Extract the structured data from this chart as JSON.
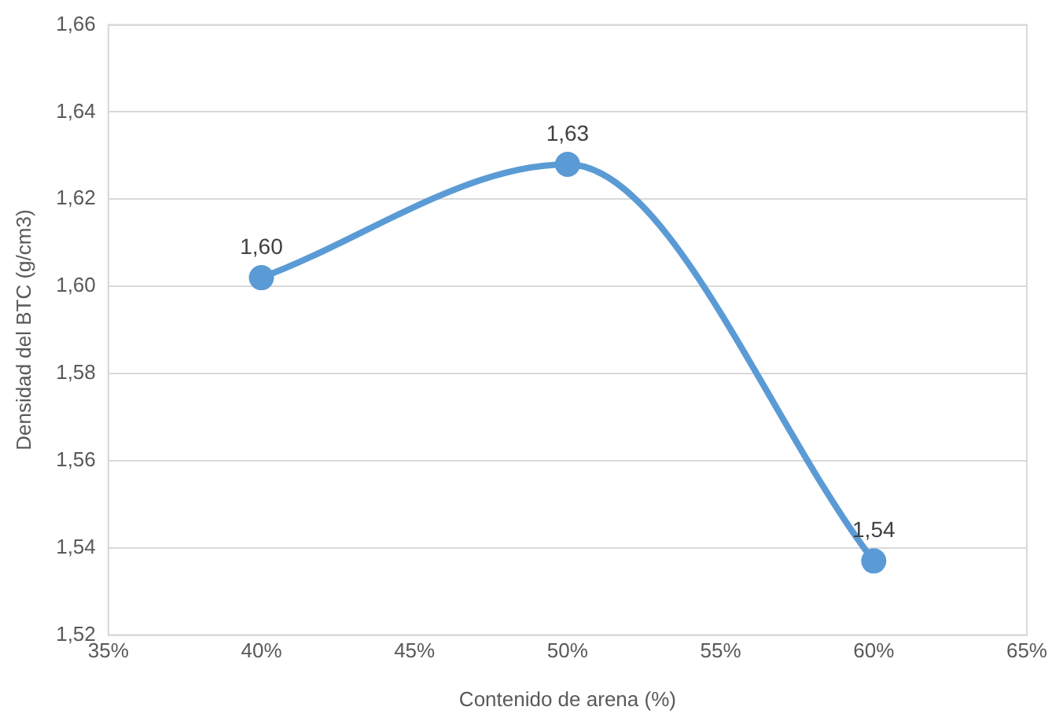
{
  "chart_data": {
    "type": "line",
    "xlabel": "Contenido de arena (%)",
    "ylabel": "Densidad del BTC (g/cm3)",
    "x": [
      0.4,
      0.5,
      0.6
    ],
    "series": [
      {
        "color": "#5b9bd5",
        "values": [
          1.602,
          1.628,
          1.537
        ],
        "value_labels": [
          "1,60",
          "1,63",
          "1,54"
        ]
      }
    ],
    "xlim": [
      0.35,
      0.65
    ],
    "xticks": [
      {
        "value": 0.35,
        "label": "35%"
      },
      {
        "value": 0.4,
        "label": "40%"
      },
      {
        "value": 0.45,
        "label": "45%"
      },
      {
        "value": 0.5,
        "label": "50%"
      },
      {
        "value": 0.55,
        "label": "55%"
      },
      {
        "value": 0.6,
        "label": "60%"
      },
      {
        "value": 0.65,
        "label": "65%"
      }
    ],
    "ylim": [
      1.52,
      1.66
    ],
    "yticks": [
      {
        "value": 1.52,
        "label": "1,52"
      },
      {
        "value": 1.54,
        "label": "1,54"
      },
      {
        "value": 1.56,
        "label": "1,56"
      },
      {
        "value": 1.58,
        "label": "1,58"
      },
      {
        "value": 1.6,
        "label": "1,60"
      },
      {
        "value": 1.62,
        "label": "1,62"
      },
      {
        "value": 1.64,
        "label": "1,64"
      },
      {
        "value": 1.66,
        "label": "1,66"
      }
    ],
    "grid": "y",
    "marker": "circle",
    "line_style": "solid",
    "legend": false
  }
}
